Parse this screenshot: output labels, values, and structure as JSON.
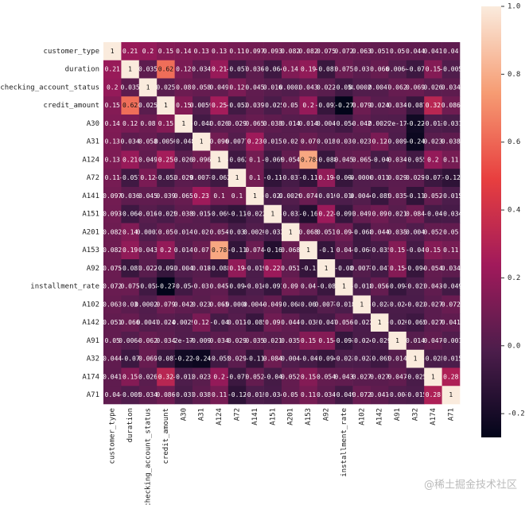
{
  "chart_data": {
    "type": "heatmap",
    "categories": [
      "customer_type",
      "duration",
      "checking_account_status",
      "credit_amount",
      "A30",
      "A31",
      "A124",
      "A72",
      "A141",
      "A151",
      "A201",
      "A153",
      "A92",
      "installment_rate",
      "A102",
      "A142",
      "A91",
      "A32",
      "A174",
      "A71"
    ],
    "values": [
      [
        1,
        0.21,
        0.2,
        0.15,
        0.14,
        0.13,
        0.13,
        0.11,
        0.097,
        0.093,
        0.082,
        0.082,
        0.075,
        0.072,
        0.063,
        0.051,
        0.05,
        0.044,
        0.041,
        0.04
      ],
      [
        0.21,
        1,
        0.035,
        0.62,
        0.12,
        0.034,
        0.21,
        -0.057,
        0.036,
        -0.064,
        0.14,
        0.19,
        -0.081,
        0.075,
        0.03,
        0.066,
        0.0064,
        -0.07,
        0.15,
        -0.005
      ],
      [
        0.2,
        0.035,
        1,
        0.025,
        0.08,
        0.058,
        0.049,
        0.12,
        0.045,
        0.016,
        0.0002,
        0.043,
        0.022,
        -0.058,
        0.00022,
        0.0047,
        0.062,
        0.069,
        0.026,
        0.034
      ],
      [
        0.15,
        0.62,
        0.025,
        1,
        0.15,
        0.0059,
        0.25,
        -0.052,
        0.039,
        -0.025,
        0.05,
        0.2,
        -0.093,
        -0.27,
        0.079,
        0.024,
        0.034,
        -0.087,
        0.32,
        0.086
      ],
      [
        0.14,
        0.12,
        0.08,
        0.15,
        1,
        -0.048,
        0.026,
        0.029,
        0.065,
        0.038,
        0.014,
        0.014,
        -0.0044,
        -0.054,
        0.042,
        0.0029,
        2e-17,
        -0.22,
        -0.013,
        -0.031
      ],
      [
        0.13,
        0.034,
        0.058,
        0.0059,
        -0.048,
        1,
        0.096,
        0.0077,
        0.23,
        0.015,
        0.02,
        0.07,
        0.018,
        0.03,
        0.023,
        0.12,
        -0.0098,
        -0.24,
        0.023,
        0.038
      ],
      [
        0.13,
        0.21,
        0.049,
        0.25,
        0.026,
        0.096,
        1,
        -0.062,
        0.1,
        -0.069,
        0.054,
        0.78,
        -0.088,
        0.045,
        0.065,
        -0.04,
        0.034,
        -0.055,
        0.2,
        0.11
      ],
      [
        0.11,
        -0.057,
        0.12,
        -0.052,
        0.029,
        0.0077,
        -0.062,
        1,
        0.1,
        -0.11,
        -0.037,
        -0.11,
        0.19,
        -0.094,
        -0.00061,
        0.011,
        0.029,
        0.029,
        -0.071,
        -0.12
      ],
      [
        0.097,
        0.036,
        0.045,
        0.039,
        0.065,
        0.23,
        0.1,
        0.1,
        1,
        -0.022,
        0.0029,
        0.074,
        -0.019,
        -0.016,
        0.0044,
        -0.085,
        0.035,
        -0.11,
        0.052,
        -0.015
      ],
      [
        0.093,
        -0.064,
        0.016,
        -0.025,
        0.038,
        0.015,
        -0.069,
        -0.11,
        -0.022,
        1,
        -0.033,
        -0.16,
        0.22,
        -0.091,
        0.049,
        0.09,
        0.021,
        0.084,
        -0.04,
        -0.034
      ],
      [
        0.082,
        0.14,
        0.0002,
        0.05,
        0.014,
        0.02,
        0.054,
        -0.037,
        0.0029,
        -0.033,
        1,
        0.068,
        0.051,
        0.09,
        -0.068,
        0.044,
        0.035,
        -0.0041,
        0.052,
        0.05
      ],
      [
        0.082,
        0.19,
        0.043,
        0.2,
        0.014,
        0.07,
        0.78,
        -0.11,
        0.074,
        -0.16,
        0.068,
        1,
        -0.1,
        0.04,
        -0.067,
        -0.035,
        0.15,
        -0.04,
        0.15,
        0.11
      ],
      [
        0.075,
        -0.081,
        0.022,
        -0.093,
        -0.0044,
        0.018,
        -0.088,
        0.19,
        -0.019,
        0.22,
        0.051,
        -0.1,
        1,
        -0.08,
        0.0077,
        -0.047,
        0.15,
        -0.094,
        0.054,
        0.034
      ],
      [
        0.072,
        0.075,
        -0.058,
        -0.27,
        -0.054,
        0.03,
        0.045,
        -0.094,
        -0.016,
        -0.091,
        0.09,
        0.04,
        -0.08,
        1,
        -0.018,
        0.056,
        -0.091,
        -0.021,
        0.043,
        -0.049
      ],
      [
        0.063,
        0.03,
        0.00022,
        0.079,
        0.042,
        0.023,
        0.065,
        -0.00061,
        0.0044,
        0.049,
        -0.068,
        -0.067,
        0.0077,
        -0.018,
        1,
        -0.022,
        -0.024,
        -0.023,
        0.027,
        0.072
      ],
      [
        0.051,
        0.066,
        0.0047,
        0.024,
        0.0029,
        0.12,
        -0.04,
        0.011,
        -0.085,
        0.09,
        0.044,
        -0.035,
        -0.047,
        0.056,
        -0.022,
        1,
        -0.029,
        -0.065,
        0.027,
        0.041
      ],
      [
        0.05,
        0.0064,
        0.062,
        0.034,
        2e-17,
        -0.0098,
        0.034,
        0.029,
        0.035,
        0.021,
        0.035,
        0.15,
        0.15,
        -0.091,
        -0.024,
        -0.029,
        1,
        0.014,
        0.047,
        -0.001
      ],
      [
        0.044,
        -0.07,
        0.069,
        -0.087,
        -0.22,
        -0.24,
        -0.055,
        0.029,
        -0.11,
        0.084,
        -0.0041,
        -0.04,
        -0.094,
        -0.021,
        -0.023,
        -0.065,
        0.014,
        1,
        -0.025,
        -0.015
      ],
      [
        0.041,
        0.15,
        0.026,
        0.32,
        -0.013,
        0.023,
        0.2,
        -0.071,
        0.052,
        -0.04,
        0.052,
        0.15,
        0.054,
        0.043,
        0.027,
        0.027,
        0.047,
        -0.025,
        1,
        0.28
      ],
      [
        0.04,
        -0.005,
        0.034,
        0.086,
        -0.031,
        0.038,
        0.11,
        -0.12,
        -0.015,
        -0.034,
        0.05,
        0.11,
        0.034,
        -0.049,
        0.072,
        0.041,
        -0.001,
        -0.015,
        0.28,
        1
      ]
    ],
    "colormap": [
      "#03051a",
      "#4c1d4b",
      "#a11a5b",
      "#e83f3f",
      "#f69c73",
      "#faebdd"
    ],
    "clim": [
      -0.27,
      1
    ],
    "cticks": [
      -0.2,
      {
        "value": 0,
        "label": "0.0"
      },
      0.2,
      0.4,
      0.6,
      0.8,
      {
        "value": 1,
        "label": "1.0"
      }
    ],
    "watermark": "@稀土掘金技术社区"
  }
}
